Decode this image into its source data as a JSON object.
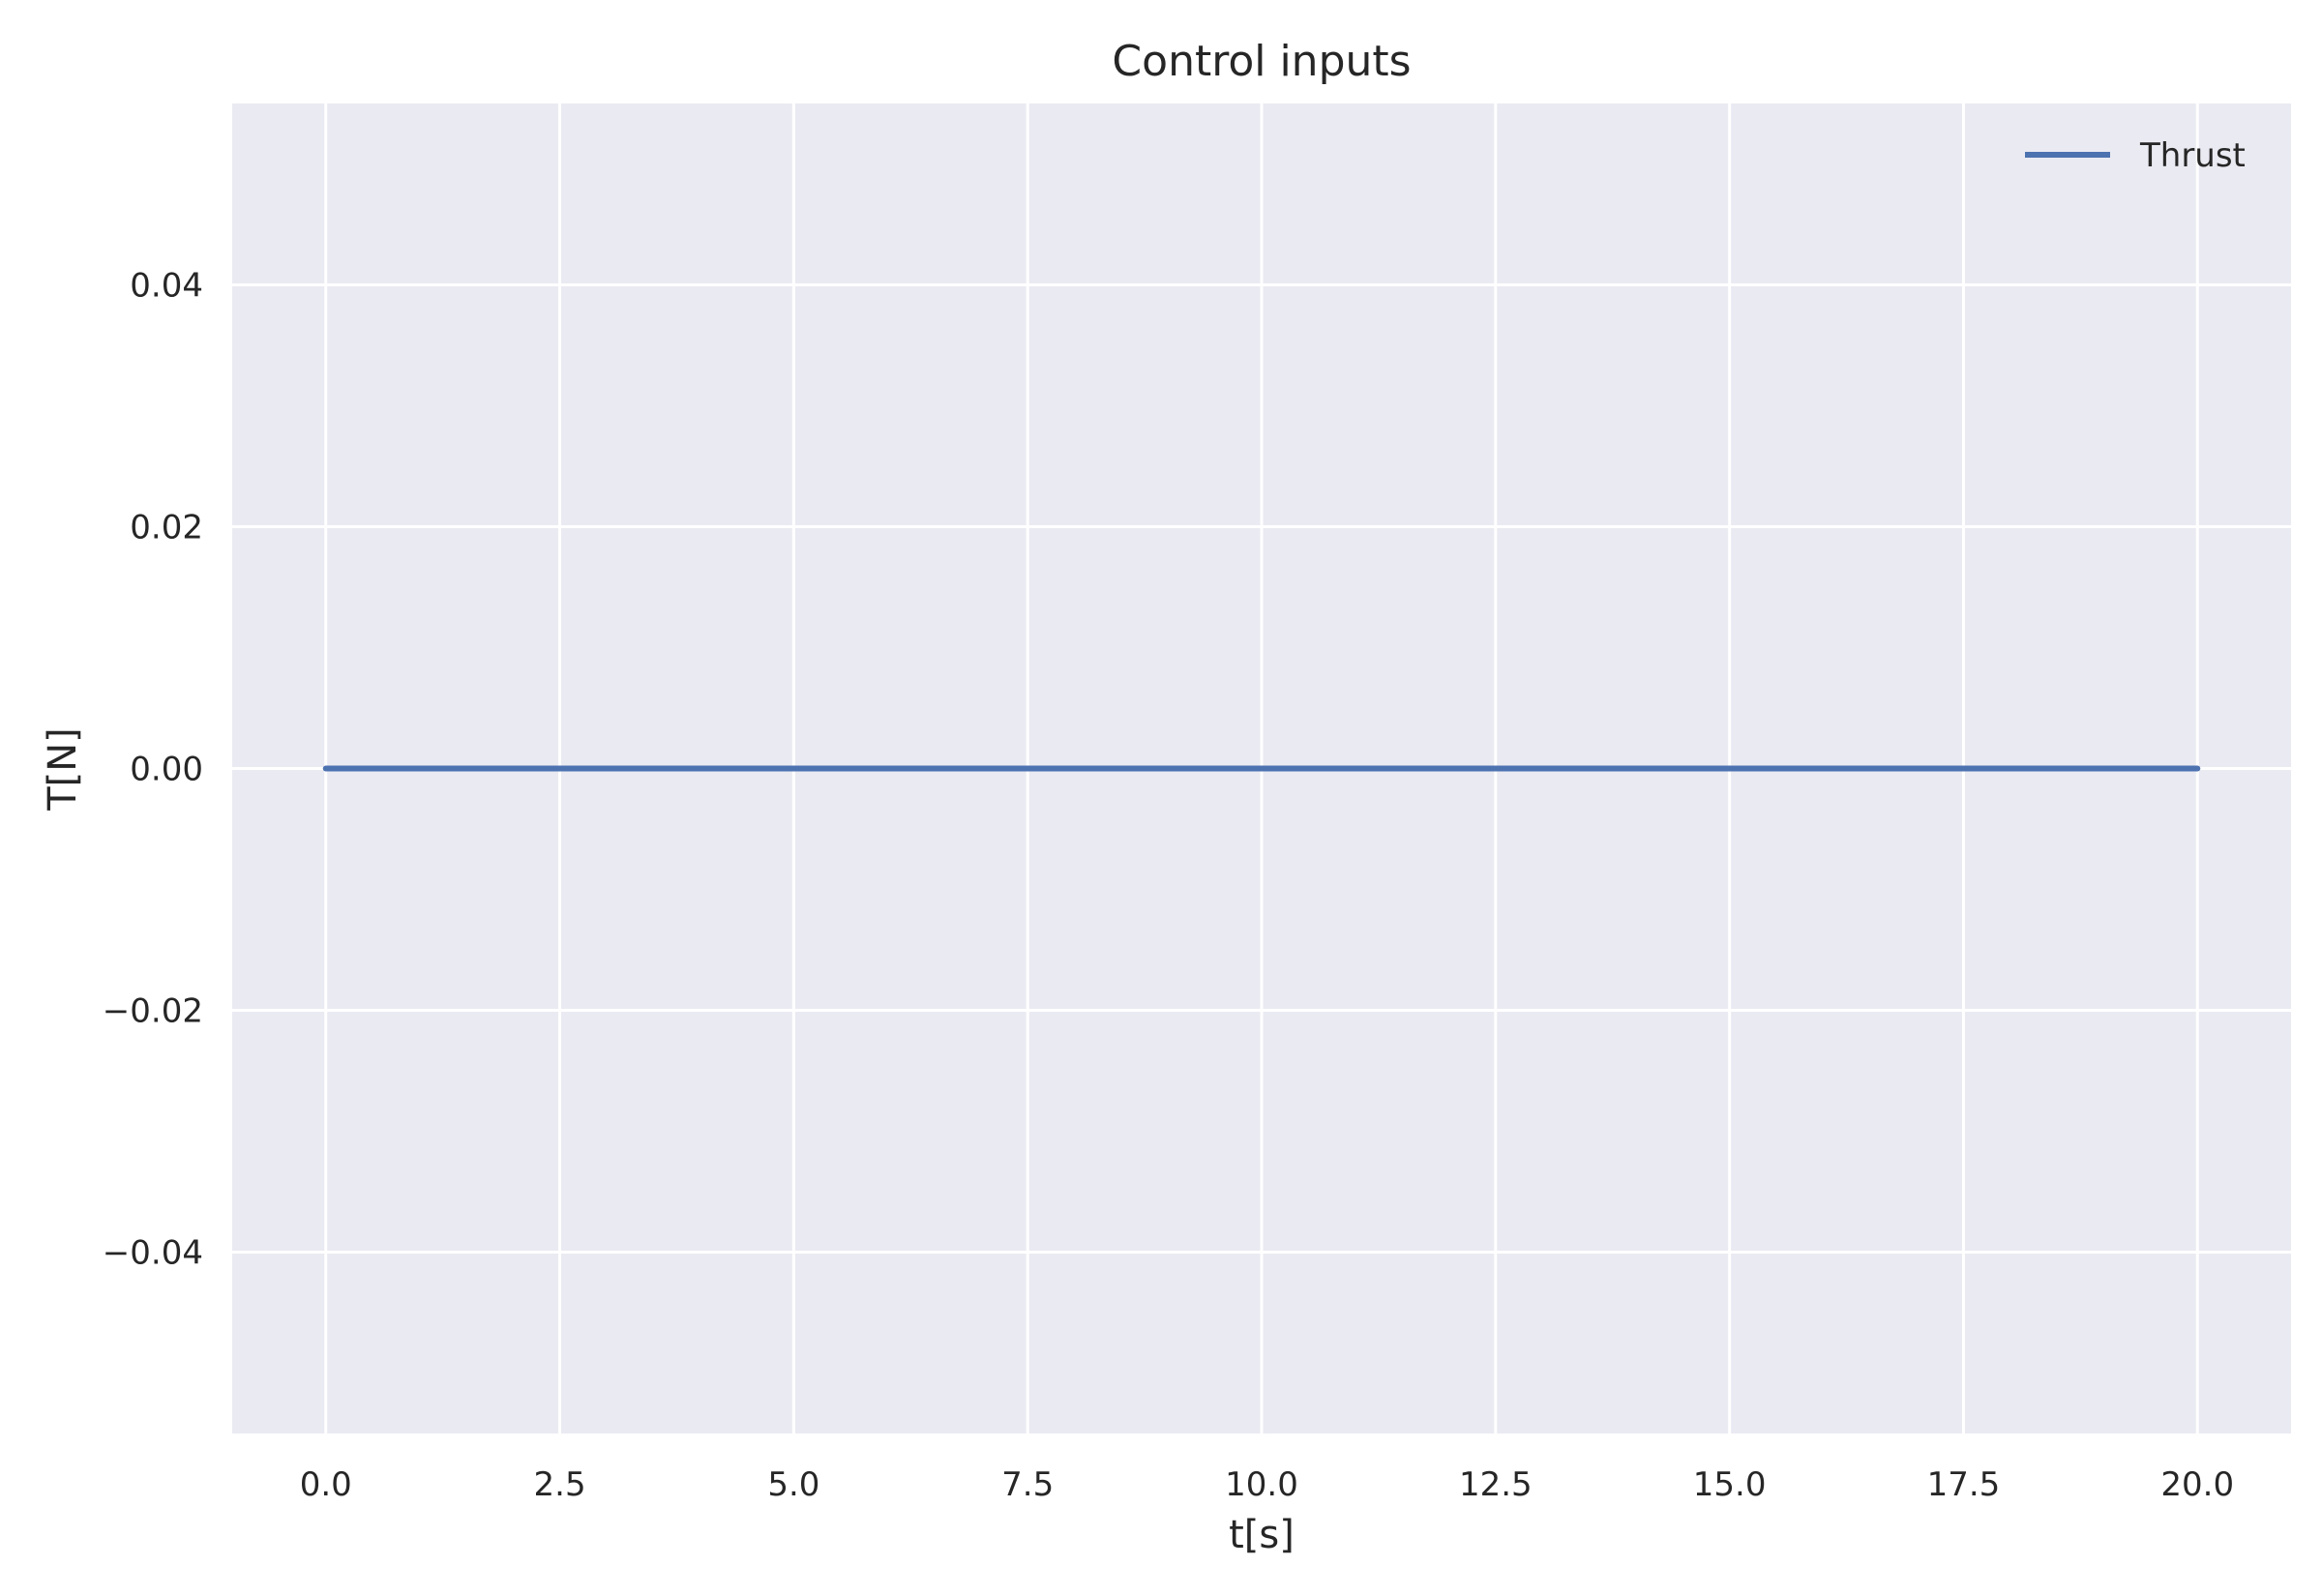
{
  "chart_data": {
    "type": "line",
    "title": "Control inputs",
    "xlabel": "t[s]",
    "ylabel": "T[N]",
    "xlim": [
      -1.0,
      21.0
    ],
    "ylim": [
      -0.055,
      0.055
    ],
    "xticks": [
      0.0,
      2.5,
      5.0,
      7.5,
      10.0,
      12.5,
      15.0,
      17.5,
      20.0
    ],
    "xtick_labels": [
      "0.0",
      "2.5",
      "5.0",
      "7.5",
      "10.0",
      "12.5",
      "15.0",
      "17.5",
      "20.0"
    ],
    "yticks": [
      -0.04,
      -0.02,
      0.0,
      0.02,
      0.04
    ],
    "ytick_labels": [
      "−0.04",
      "−0.02",
      "0.00",
      "0.02",
      "0.04"
    ],
    "grid": true,
    "legend": {
      "position": "top-right"
    },
    "series": [
      {
        "name": "Thrust",
        "color": "#4c72b0",
        "x": [
          0.0,
          2.5,
          5.0,
          7.5,
          10.0,
          12.5,
          15.0,
          17.5,
          20.0
        ],
        "y": [
          0.0,
          0.0,
          0.0,
          0.0,
          0.0,
          0.0,
          0.0,
          0.0,
          0.0
        ]
      }
    ],
    "colors": {
      "plot_background": "#eaeaf2",
      "grid": "#ffffff",
      "text": "#262626"
    }
  }
}
